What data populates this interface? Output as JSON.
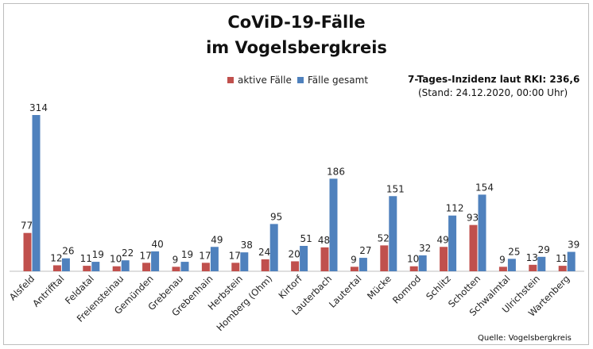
{
  "chart_data": {
    "type": "bar",
    "title": "CoViD-19-Fälle",
    "subtitle": "im Vogelsbergkreis",
    "categories": [
      "Alsfeld",
      "Antrifftal",
      "Feldatal",
      "Freiensteinau",
      "Gemünden",
      "Grebenau",
      "Grebenhain",
      "Herbstein",
      "Homberg (Ohm)",
      "Kirtorf",
      "Lauterbach",
      "Lautertal",
      "Mücke",
      "Romrod",
      "Schlitz",
      "Schotten",
      "Schwalmtal",
      "Ulrichstein",
      "Wartenberg"
    ],
    "series": [
      {
        "name": "aktive Fälle",
        "color": "#c0504d",
        "values": [
          77,
          12,
          11,
          10,
          17,
          9,
          17,
          17,
          24,
          20,
          48,
          9,
          52,
          10,
          49,
          93,
          9,
          13,
          11
        ]
      },
      {
        "name": "Fälle gesamt",
        "color": "#4f81bd",
        "values": [
          314,
          26,
          19,
          22,
          40,
          19,
          49,
          38,
          95,
          51,
          186,
          27,
          151,
          32,
          112,
          154,
          25,
          29,
          39
        ]
      }
    ],
    "ylim": [
      0,
      314
    ],
    "grid": false,
    "legend": "top",
    "annotation": {
      "incidence": "7-Tages-Inzidenz laut RKI: 236,6",
      "stand": "(Stand: 24.12.2020, 00:00 Uhr)"
    },
    "source": "Quelle: Vogelsbergkreis"
  }
}
